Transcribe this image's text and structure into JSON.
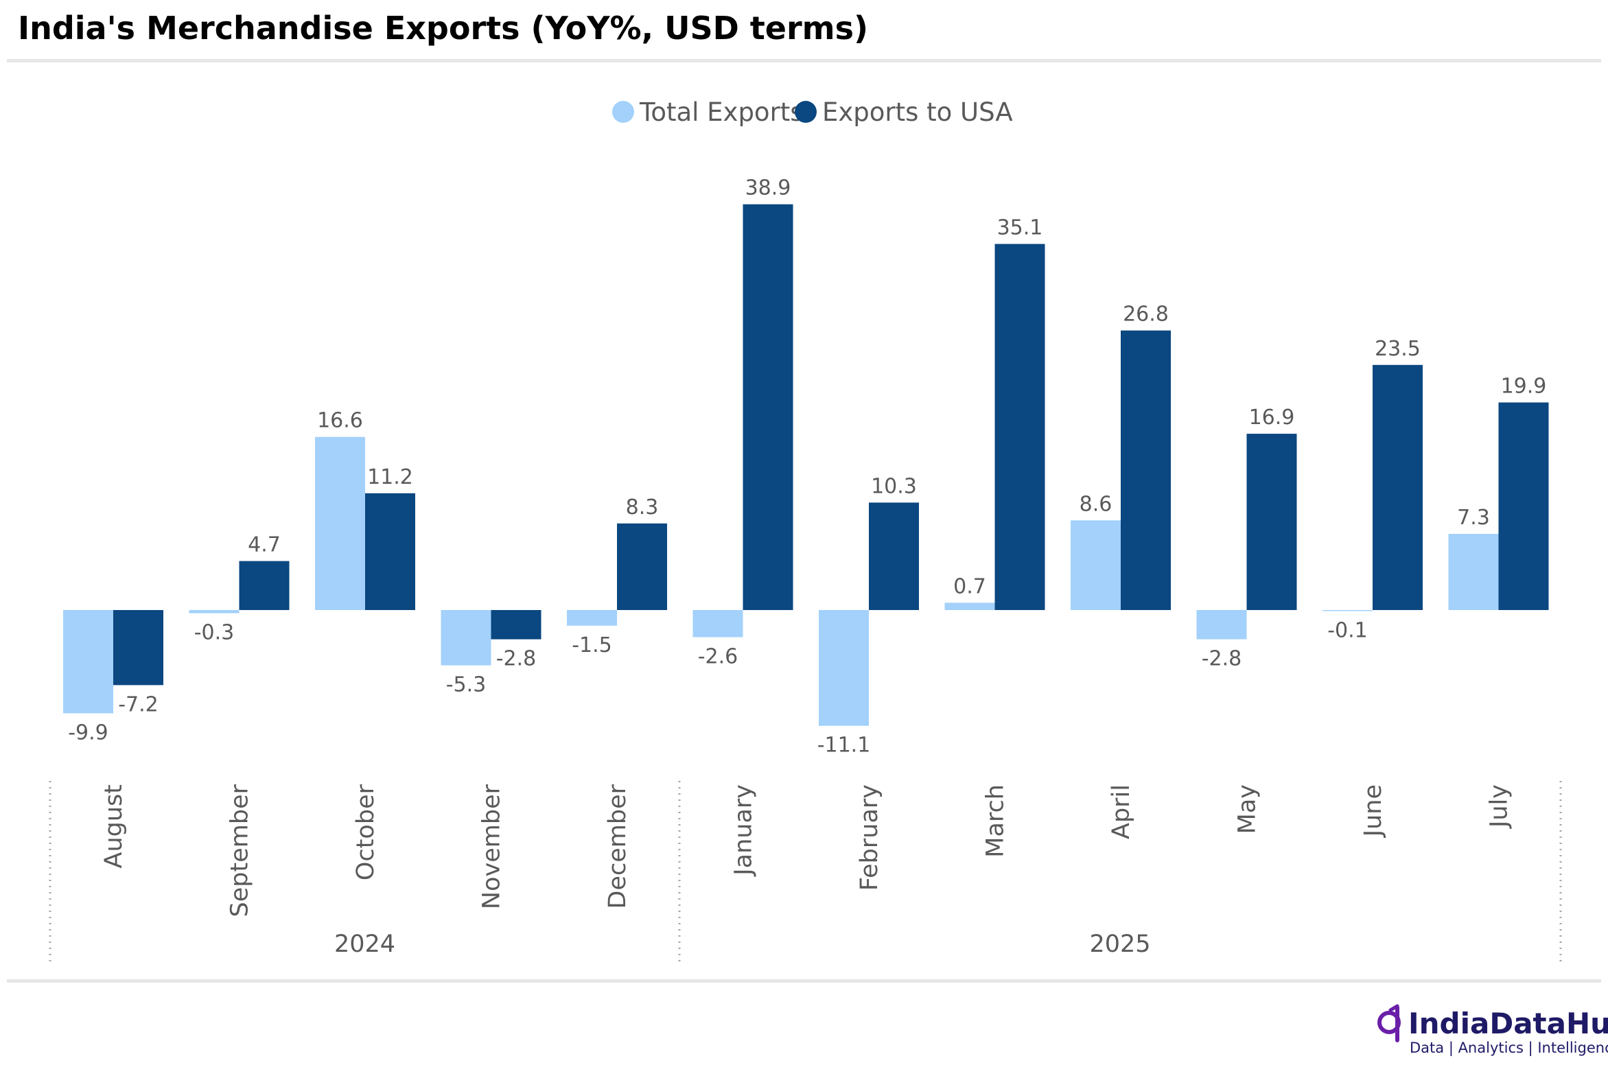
{
  "title": "India's Merchandise Exports (YoY%, USD terms)",
  "brand": {
    "name": "IndiaDataHub",
    "tagline": "Data | Analytics | Intelligence"
  },
  "colors": {
    "total": "#a3d1fb",
    "usa": "#0b4780",
    "text": "#595959",
    "rule": "#e6e6e6"
  },
  "chart_data": {
    "type": "bar",
    "title": "India's Merchandise Exports (YoY%, USD terms)",
    "categories": [
      "August",
      "September",
      "October",
      "November",
      "December",
      "January",
      "February",
      "March",
      "April",
      "May",
      "June",
      "July"
    ],
    "years": [
      {
        "label": "2024",
        "count": 5
      },
      {
        "label": "2025",
        "count": 7
      }
    ],
    "series": [
      {
        "name": "Total Exports",
        "color": "#a3d1fb",
        "values": [
          -9.9,
          -0.3,
          16.6,
          -5.3,
          -1.5,
          -2.6,
          -11.1,
          0.7,
          8.6,
          -2.8,
          -0.1,
          7.3
        ]
      },
      {
        "name": "Exports to USA",
        "color": "#0b4780",
        "values": [
          -7.2,
          4.7,
          11.2,
          -2.8,
          8.3,
          38.9,
          10.3,
          35.1,
          26.8,
          16.9,
          23.5,
          19.9
        ]
      }
    ],
    "legend": "top-center",
    "grid": false
  }
}
